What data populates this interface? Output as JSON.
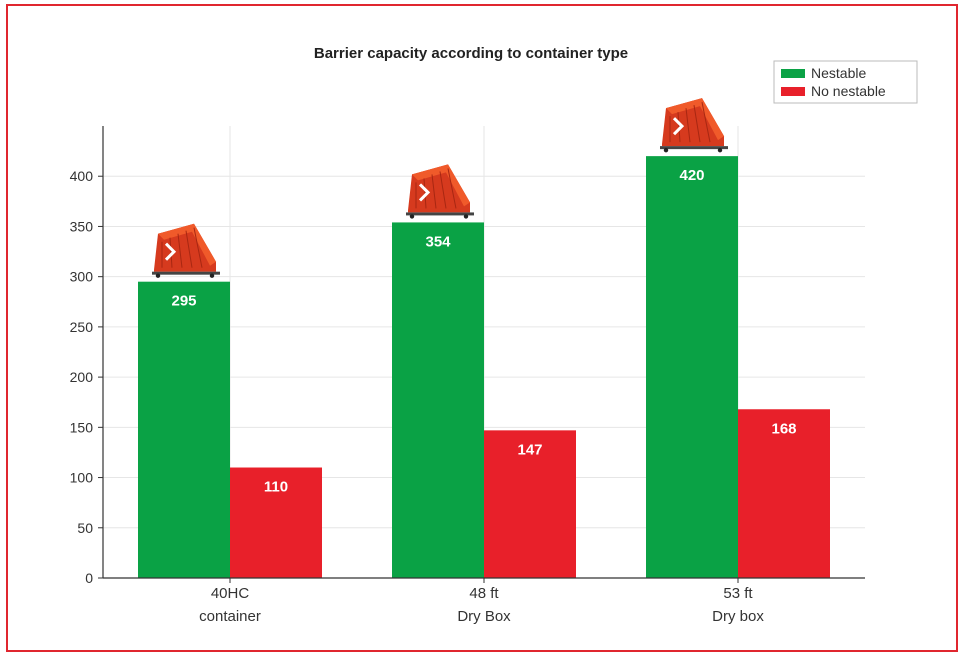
{
  "chart_data": {
    "type": "bar",
    "title": "Barrier capacity according to container type",
    "categories": [
      {
        "line1": "40HC",
        "line2": "container"
      },
      {
        "line1": "48 ft",
        "line2": "Dry Box"
      },
      {
        "line1": "53 ft",
        "line2": "Dry box"
      }
    ],
    "series": [
      {
        "name": "Nestable",
        "color": "#0aa245",
        "values": [
          295,
          354,
          420
        ]
      },
      {
        "name": "No nestable",
        "color": "#e8202a",
        "values": [
          110,
          147,
          168
        ]
      }
    ],
    "ylim": [
      0,
      450
    ],
    "yticks": [
      "0",
      "50",
      "100",
      "150",
      "200",
      "250",
      "300",
      "350",
      "400"
    ],
    "grid": true,
    "legend_position": "top-right",
    "icon": "barrier-icon"
  }
}
